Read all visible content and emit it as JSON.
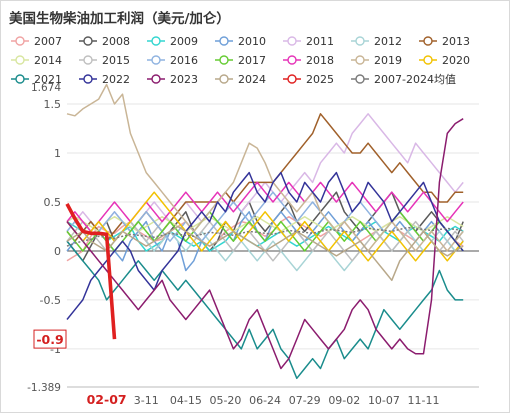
{
  "title": "美国生物柴油加工利润（美元/加仑）",
  "chart_data": {
    "type": "line",
    "title": "美国生物柴油加工利润（美元/加仑）",
    "xlabel": "",
    "ylabel": "",
    "x_ticks": [
      "02-07",
      "3-11",
      "04-15",
      "05-20",
      "06-24",
      "07-29",
      "09-02",
      "10-07",
      "11-11"
    ],
    "x_tick_pos": [
      5,
      10,
      15,
      20,
      25,
      30,
      35,
      40,
      45
    ],
    "x_highlight": "02-07",
    "y_ticks": [
      -1,
      -0.5,
      0,
      0.5,
      1,
      1.5
    ],
    "y_extremes": [
      "1.674",
      "-1.389"
    ],
    "ylim": [
      -1.389,
      1.674
    ],
    "xlim": [
      0,
      52
    ],
    "last_value_label": "-0.9",
    "grid": "horizontal",
    "legend_placement": "top",
    "series": [
      {
        "name": "2007",
        "color": "#f0a3a3",
        "dashed": false,
        "marker": "circle",
        "values": [
          -0.1,
          -0.05,
          0.0,
          0.15,
          0.25,
          0.2,
          0.18,
          0.25,
          0.3,
          0.2,
          0.15,
          0.1,
          0.12,
          0.2,
          0.25,
          0.3,
          0.2,
          0.1,
          0.05,
          0.1,
          0.2,
          0.25,
          0.3,
          0.28,
          0.2,
          0.15,
          0.2,
          0.3,
          0.35,
          0.3,
          0.25,
          0.2,
          0.15,
          0.2,
          0.25,
          0.3,
          0.2,
          0.1,
          0.15,
          0.2,
          0.25,
          0.3,
          0.2,
          0.15,
          0.1,
          0.2,
          0.25,
          0.3,
          0.2,
          0.1,
          0.05
        ]
      },
      {
        "name": "2008",
        "color": "#595959",
        "dashed": false,
        "marker": "circle",
        "values": [
          0.1,
          0.0,
          -0.1,
          0.05,
          0.2,
          0.3,
          0.1,
          0.2,
          0.3,
          0.2,
          0.1,
          0.0,
          0.1,
          0.2,
          0.3,
          0.4,
          0.2,
          0.1,
          0.0,
          0.1,
          0.3,
          0.2,
          0.4,
          0.5,
          0.3,
          0.2,
          0.3,
          0.4,
          0.5,
          0.3,
          0.2,
          0.3,
          0.4,
          0.5,
          0.6,
          0.4,
          0.3,
          0.2,
          0.3,
          0.4,
          0.5,
          0.6,
          0.4,
          0.3,
          0.2,
          0.3,
          0.4,
          0.3,
          0.2,
          0.1,
          0.3
        ]
      },
      {
        "name": "2009",
        "color": "#33d6d0",
        "dashed": false,
        "marker": "circle",
        "values": [
          0.3,
          0.25,
          0.2,
          0.3,
          0.2,
          0.1,
          0.15,
          0.2,
          0.25,
          0.1,
          0.0,
          0.05,
          0.1,
          0.2,
          0.15,
          0.1,
          0.05,
          0.1,
          0.0,
          0.05,
          0.1,
          0.2,
          0.15,
          0.1,
          0.05,
          0.1,
          0.15,
          0.2,
          0.1,
          0.05,
          0.1,
          0.15,
          0.2,
          0.25,
          0.2,
          0.15,
          0.1,
          0.2,
          0.25,
          0.3,
          0.2,
          0.15,
          0.1,
          0.2,
          0.25,
          0.2,
          0.15,
          0.1,
          0.2,
          0.25,
          0.2
        ]
      },
      {
        "name": "2010",
        "color": "#6f9fd8",
        "dashed": false,
        "marker": "circle",
        "values": [
          0.0,
          0.1,
          0.2,
          0.3,
          0.2,
          0.1,
          0.0,
          -0.1,
          0.1,
          0.2,
          0.3,
          0.1,
          0.0,
          0.2,
          0.1,
          -0.2,
          -0.1,
          0.1,
          0.2,
          0.3,
          0.2,
          0.1,
          0.3,
          0.4,
          0.2,
          0.1,
          0.3,
          0.4,
          0.3,
          0.2,
          0.1,
          0.2,
          0.3,
          0.4,
          0.3,
          0.2,
          0.1,
          0.2,
          0.3,
          0.2,
          0.1,
          0.2,
          0.3,
          0.2,
          0.1,
          0.2,
          0.3,
          0.2,
          0.1,
          0.0,
          0.1
        ]
      },
      {
        "name": "2011",
        "color": "#d9b8e6",
        "dashed": false,
        "marker": "circle",
        "values": [
          0.2,
          0.3,
          0.4,
          0.3,
          0.2,
          0.3,
          0.4,
          0.3,
          0.2,
          0.3,
          0.4,
          0.5,
          0.4,
          0.3,
          0.4,
          0.5,
          0.4,
          0.3,
          0.4,
          0.5,
          0.6,
          0.5,
          0.4,
          0.5,
          0.6,
          0.7,
          0.6,
          0.5,
          0.6,
          0.7,
          0.8,
          0.7,
          0.9,
          1.0,
          1.1,
          1.0,
          1.2,
          1.3,
          1.4,
          1.3,
          1.2,
          1.1,
          1.0,
          0.9,
          1.1,
          1.0,
          0.9,
          0.8,
          0.7,
          0.6,
          0.7
        ]
      },
      {
        "name": "2012",
        "color": "#a8d4d6",
        "dashed": false,
        "marker": "circle",
        "values": [
          0.3,
          0.2,
          0.1,
          0.2,
          0.3,
          0.2,
          0.1,
          0.2,
          0.3,
          0.2,
          0.1,
          0.0,
          0.1,
          0.2,
          0.1,
          0.0,
          0.1,
          0.2,
          0.1,
          0.0,
          -0.1,
          0.0,
          0.1,
          0.0,
          -0.1,
          0.0,
          0.1,
          0.0,
          -0.1,
          -0.2,
          -0.1,
          0.0,
          0.1,
          0.0,
          -0.1,
          -0.2,
          -0.1,
          0.0,
          0.1,
          0.2,
          0.1,
          0.0,
          0.1,
          0.2,
          0.1,
          0.0,
          0.1,
          0.2,
          0.1,
          0.0,
          0.1
        ]
      },
      {
        "name": "2013",
        "color": "#a0602a",
        "dashed": false,
        "marker": "circle",
        "values": [
          0.2,
          0.1,
          0.2,
          0.3,
          0.2,
          0.1,
          0.2,
          0.3,
          0.2,
          0.3,
          0.4,
          0.3,
          0.2,
          0.3,
          0.4,
          0.5,
          0.5,
          0.5,
          0.5,
          0.5,
          0.6,
          0.5,
          0.6,
          0.7,
          0.7,
          0.7,
          0.7,
          0.8,
          0.9,
          1.0,
          1.1,
          1.2,
          1.4,
          1.3,
          1.2,
          1.1,
          1.0,
          1.0,
          1.1,
          1.0,
          0.9,
          0.8,
          0.9,
          0.8,
          0.7,
          0.6,
          0.6,
          0.5,
          0.5,
          0.6,
          0.6
        ]
      },
      {
        "name": "2014",
        "color": "#d8e6a0",
        "dashed": false,
        "marker": "circle",
        "values": [
          0.3,
          0.35,
          0.3,
          0.25,
          0.2,
          0.3,
          0.35,
          0.3,
          0.25,
          0.2,
          0.25,
          0.3,
          0.35,
          0.3,
          0.25,
          0.2,
          0.25,
          0.3,
          0.35,
          0.3,
          0.25,
          0.2,
          0.25,
          0.3,
          0.35,
          0.3,
          0.25,
          0.2,
          0.25,
          0.3,
          0.35,
          0.3,
          0.25,
          0.2,
          0.25,
          0.3,
          0.35,
          0.3,
          0.25,
          0.2,
          0.25,
          0.3,
          0.35,
          0.3,
          0.25,
          0.2,
          0.25,
          0.3,
          0.35,
          0.3,
          0.25
        ]
      },
      {
        "name": "2015",
        "color": "#bfbfbf",
        "dashed": false,
        "marker": "circle",
        "values": [
          0.1,
          0.2,
          0.3,
          0.2,
          0.1,
          0.0,
          0.1,
          0.2,
          0.3,
          0.2,
          0.1,
          0.2,
          0.3,
          0.4,
          0.3,
          0.2,
          0.1,
          0.2,
          0.3,
          0.2,
          0.1,
          0.0,
          0.1,
          0.2,
          0.1,
          0.0,
          -0.1,
          0.0,
          0.1,
          0.2,
          0.1,
          0.0,
          0.1,
          0.2,
          0.1,
          0.0,
          -0.1,
          0.0,
          0.1,
          0.2,
          0.1,
          0.0,
          0.1,
          0.2,
          0.3,
          0.2,
          0.1,
          0.0,
          0.1,
          0.2,
          0.1
        ]
      },
      {
        "name": "2016",
        "color": "#8fb3e0",
        "dashed": false,
        "marker": "circle",
        "values": [
          0.2,
          0.3,
          0.2,
          0.1,
          0.2,
          0.3,
          0.4,
          0.3,
          0.2,
          0.3,
          0.4,
          0.3,
          0.2,
          0.1,
          0.2,
          0.3,
          0.2,
          0.1,
          0.2,
          0.3,
          0.4,
          0.5,
          0.4,
          0.3,
          0.4,
          0.5,
          0.6,
          0.5,
          0.4,
          0.3,
          0.4,
          0.5,
          0.4,
          0.3,
          0.2,
          0.3,
          0.4,
          0.5,
          0.4,
          0.3,
          0.2,
          0.3,
          0.4,
          0.3,
          0.2,
          0.1,
          0.2,
          0.3,
          0.2,
          0.1,
          0.2
        ]
      },
      {
        "name": "2017",
        "color": "#66cc33",
        "dashed": false,
        "marker": "circle",
        "values": [
          0.2,
          0.1,
          0.0,
          0.1,
          0.2,
          0.1,
          0.0,
          0.1,
          0.2,
          0.3,
          0.2,
          0.1,
          0.2,
          0.3,
          0.2,
          0.1,
          0.2,
          0.3,
          0.4,
          0.3,
          0.2,
          0.1,
          0.2,
          0.3,
          0.2,
          0.1,
          0.2,
          0.3,
          0.2,
          0.1,
          0.0,
          0.1,
          0.2,
          0.3,
          0.2,
          0.1,
          0.2,
          0.3,
          0.2,
          0.1,
          0.2,
          0.3,
          0.4,
          0.3,
          0.2,
          0.1,
          0.2,
          0.3,
          0.2,
          0.1,
          0.0
        ]
      },
      {
        "name": "2018",
        "color": "#e633b8",
        "dashed": false,
        "marker": "circle",
        "values": [
          0.3,
          0.4,
          0.3,
          0.2,
          0.3,
          0.4,
          0.5,
          0.4,
          0.3,
          0.4,
          0.5,
          0.4,
          0.3,
          0.4,
          0.5,
          0.6,
          0.5,
          0.4,
          0.5,
          0.6,
          0.5,
          0.4,
          0.5,
          0.6,
          0.7,
          0.6,
          0.5,
          0.6,
          0.7,
          0.6,
          0.5,
          0.6,
          0.7,
          0.6,
          0.5,
          0.6,
          0.7,
          0.6,
          0.5,
          0.4,
          0.5,
          0.6,
          0.5,
          0.4,
          0.5,
          0.6,
          0.5,
          0.4,
          0.3,
          0.4,
          0.5
        ]
      },
      {
        "name": "2019",
        "color": "#c9b596",
        "dashed": false,
        "marker": "circle",
        "values": [
          1.4,
          1.38,
          1.45,
          1.5,
          1.55,
          1.7,
          1.5,
          1.6,
          1.2,
          1.0,
          0.8,
          0.7,
          0.6,
          0.5,
          0.4,
          0.3,
          0.2,
          0.3,
          0.4,
          0.5,
          0.6,
          0.7,
          0.9,
          1.1,
          1.05,
          0.9,
          0.7,
          0.6,
          0.5,
          0.4,
          0.5,
          0.6,
          0.4,
          0.3,
          0.2,
          0.3,
          0.2,
          0.1,
          0.0,
          0.1,
          0.2,
          0.3,
          0.2,
          0.1,
          0.0,
          0.1,
          0.2,
          0.1,
          0.0,
          0.1,
          0.2
        ]
      },
      {
        "name": "2020",
        "color": "#f2c200",
        "dashed": false,
        "marker": "circle",
        "values": [
          0.3,
          0.2,
          0.1,
          0.2,
          0.3,
          0.2,
          0.1,
          0.2,
          0.3,
          0.4,
          0.5,
          0.6,
          0.5,
          0.4,
          0.3,
          0.2,
          0.1,
          0.0,
          0.1,
          0.2,
          0.3,
          0.2,
          0.1,
          0.2,
          0.3,
          0.4,
          0.3,
          0.2,
          0.1,
          0.2,
          0.3,
          0.2,
          0.1,
          0.0,
          0.1,
          0.2,
          0.1,
          0.0,
          -0.1,
          0.0,
          0.1,
          0.2,
          0.1,
          0.0,
          -0.1,
          0.0,
          0.1,
          0.0,
          -0.1,
          0.0,
          0.1
        ]
      },
      {
        "name": "2021",
        "color": "#1a8c8c",
        "dashed": false,
        "marker": "circle",
        "values": [
          0.1,
          0.0,
          -0.1,
          -0.2,
          -0.3,
          -0.5,
          -0.4,
          -0.3,
          -0.2,
          -0.1,
          -0.2,
          -0.3,
          -0.2,
          -0.3,
          -0.4,
          -0.3,
          -0.4,
          -0.5,
          -0.6,
          -0.7,
          -0.8,
          -0.9,
          -1.0,
          -0.8,
          -1.0,
          -0.9,
          -0.8,
          -1.0,
          -1.1,
          -1.3,
          -1.2,
          -1.1,
          -1.2,
          -1.0,
          -0.9,
          -1.1,
          -1.0,
          -0.9,
          -1.0,
          -0.8,
          -0.6,
          -0.7,
          -0.8,
          -0.7,
          -0.6,
          -0.5,
          -0.4,
          -0.2,
          -0.4,
          -0.5,
          -0.5
        ]
      },
      {
        "name": "2022",
        "color": "#333399",
        "dashed": false,
        "marker": "circle",
        "values": [
          -0.7,
          -0.6,
          -0.5,
          -0.3,
          -0.2,
          -0.1,
          0.0,
          0.1,
          0.0,
          -0.2,
          -0.3,
          -0.4,
          -0.2,
          -0.1,
          0.0,
          0.2,
          0.3,
          0.4,
          0.3,
          0.5,
          0.4,
          0.6,
          0.7,
          0.8,
          0.6,
          0.5,
          0.7,
          0.8,
          0.6,
          0.5,
          0.7,
          0.6,
          0.5,
          0.7,
          0.8,
          0.6,
          0.4,
          0.5,
          0.7,
          0.6,
          0.5,
          0.3,
          0.4,
          0.5,
          0.6,
          0.7,
          0.5,
          0.3,
          0.2,
          0.1,
          0.0
        ]
      },
      {
        "name": "2023",
        "color": "#8b1c6e",
        "dashed": false,
        "marker": "circle",
        "values": [
          0.3,
          0.2,
          0.1,
          0.0,
          -0.1,
          -0.2,
          -0.3,
          -0.4,
          -0.5,
          -0.6,
          -0.5,
          -0.4,
          -0.3,
          -0.5,
          -0.6,
          -0.7,
          -0.6,
          -0.5,
          -0.4,
          -0.6,
          -0.8,
          -1.0,
          -0.9,
          -0.7,
          -0.6,
          -0.8,
          -1.0,
          -1.2,
          -1.1,
          -0.9,
          -0.7,
          -0.8,
          -0.9,
          -1.0,
          -0.9,
          -0.8,
          -0.6,
          -0.5,
          -0.6,
          -0.8,
          -0.9,
          -1.0,
          -0.9,
          -1.0,
          -1.05,
          -1.05,
          -0.5,
          0.7,
          1.2,
          1.3,
          1.35
        ]
      },
      {
        "name": "2024",
        "color": "#b8a88a",
        "dashed": false,
        "marker": "circle",
        "values": [
          0.1,
          0.15,
          0.2,
          0.1,
          0.05,
          0.0,
          0.1,
          0.2,
          0.15,
          0.1,
          0.05,
          0.1,
          0.15,
          0.2,
          0.25,
          0.2,
          0.15,
          0.1,
          0.05,
          0.1,
          0.15,
          0.2,
          0.15,
          0.1,
          0.05,
          0.0,
          0.05,
          0.1,
          0.15,
          0.2,
          0.15,
          0.1,
          0.05,
          0.0,
          -0.05,
          0.0,
          0.05,
          0.1,
          0.0,
          -0.1,
          -0.2,
          -0.3,
          -0.1,
          0.0,
          0.1,
          0.2,
          0.1,
          0.0,
          -0.05,
          0.0,
          0.05
        ]
      },
      {
        "name": "2025",
        "color": "#e02020",
        "dashed": false,
        "marker": "circle",
        "values": [
          0.48,
          0.33,
          0.2,
          0.18,
          0.18,
          0.17,
          -0.9
        ]
      },
      {
        "name": "2007-2024均值",
        "color": "#7a7a7a",
        "dashed": true,
        "marker": "circle",
        "values": [
          0.05,
          0.08,
          0.1,
          0.12,
          0.15,
          0.14,
          0.13,
          0.15,
          0.17,
          0.16,
          0.15,
          0.14,
          0.16,
          0.18,
          0.17,
          0.16,
          0.15,
          0.17,
          0.19,
          0.18,
          0.17,
          0.16,
          0.18,
          0.2,
          0.19,
          0.18,
          0.17,
          0.19,
          0.21,
          0.2,
          0.19,
          0.18,
          0.2,
          0.22,
          0.21,
          0.2,
          0.19,
          0.21,
          0.23,
          0.22,
          0.21,
          0.2,
          0.22,
          0.24,
          0.23,
          0.22,
          0.21,
          0.22,
          0.23,
          0.22,
          0.21
        ]
      }
    ]
  }
}
